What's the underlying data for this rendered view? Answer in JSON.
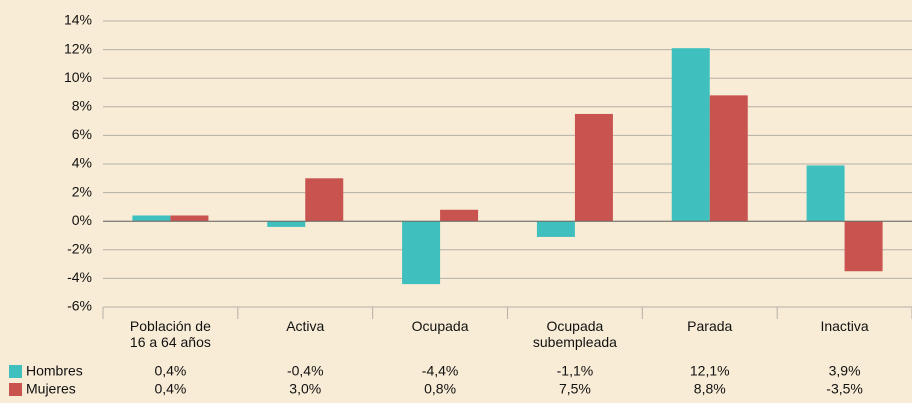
{
  "chart_data": {
    "type": "bar",
    "categories": [
      "Población de\n16 a 64 años",
      "Activa",
      "Ocupada",
      "Ocupada\nsubempleada",
      "Parada",
      "Inactiva"
    ],
    "series": [
      {
        "name": "Hombres",
        "color": "#3fc0bf",
        "values": [
          0.4,
          -0.4,
          -4.4,
          -1.1,
          12.1,
          3.9
        ],
        "value_labels": [
          "0,4%",
          "-0,4%",
          "-4,4%",
          "-1,1%",
          "12,1%",
          "3,9%"
        ]
      },
      {
        "name": "Mujeres",
        "color": "#c9534f",
        "values": [
          0.4,
          3.0,
          0.8,
          7.5,
          8.8,
          -3.5
        ],
        "value_labels": [
          "0,4%",
          "3,0%",
          "0,8%",
          "7,5%",
          "8,8%",
          "-3,5%"
        ]
      }
    ],
    "ylim": [
      -6,
      14
    ],
    "yticks": [
      {
        "value": -6,
        "label": "-6%"
      },
      {
        "value": -4,
        "label": "-4%"
      },
      {
        "value": -2,
        "label": "-2%"
      },
      {
        "value": 0,
        "label": "0%"
      },
      {
        "value": 2,
        "label": "2%"
      },
      {
        "value": 4,
        "label": "4%"
      },
      {
        "value": 6,
        "label": "6%"
      },
      {
        "value": 8,
        "label": "8%"
      },
      {
        "value": 10,
        "label": "10%"
      },
      {
        "value": 12,
        "label": "12%"
      },
      {
        "value": 14,
        "label": "14%"
      }
    ],
    "grid": true
  }
}
